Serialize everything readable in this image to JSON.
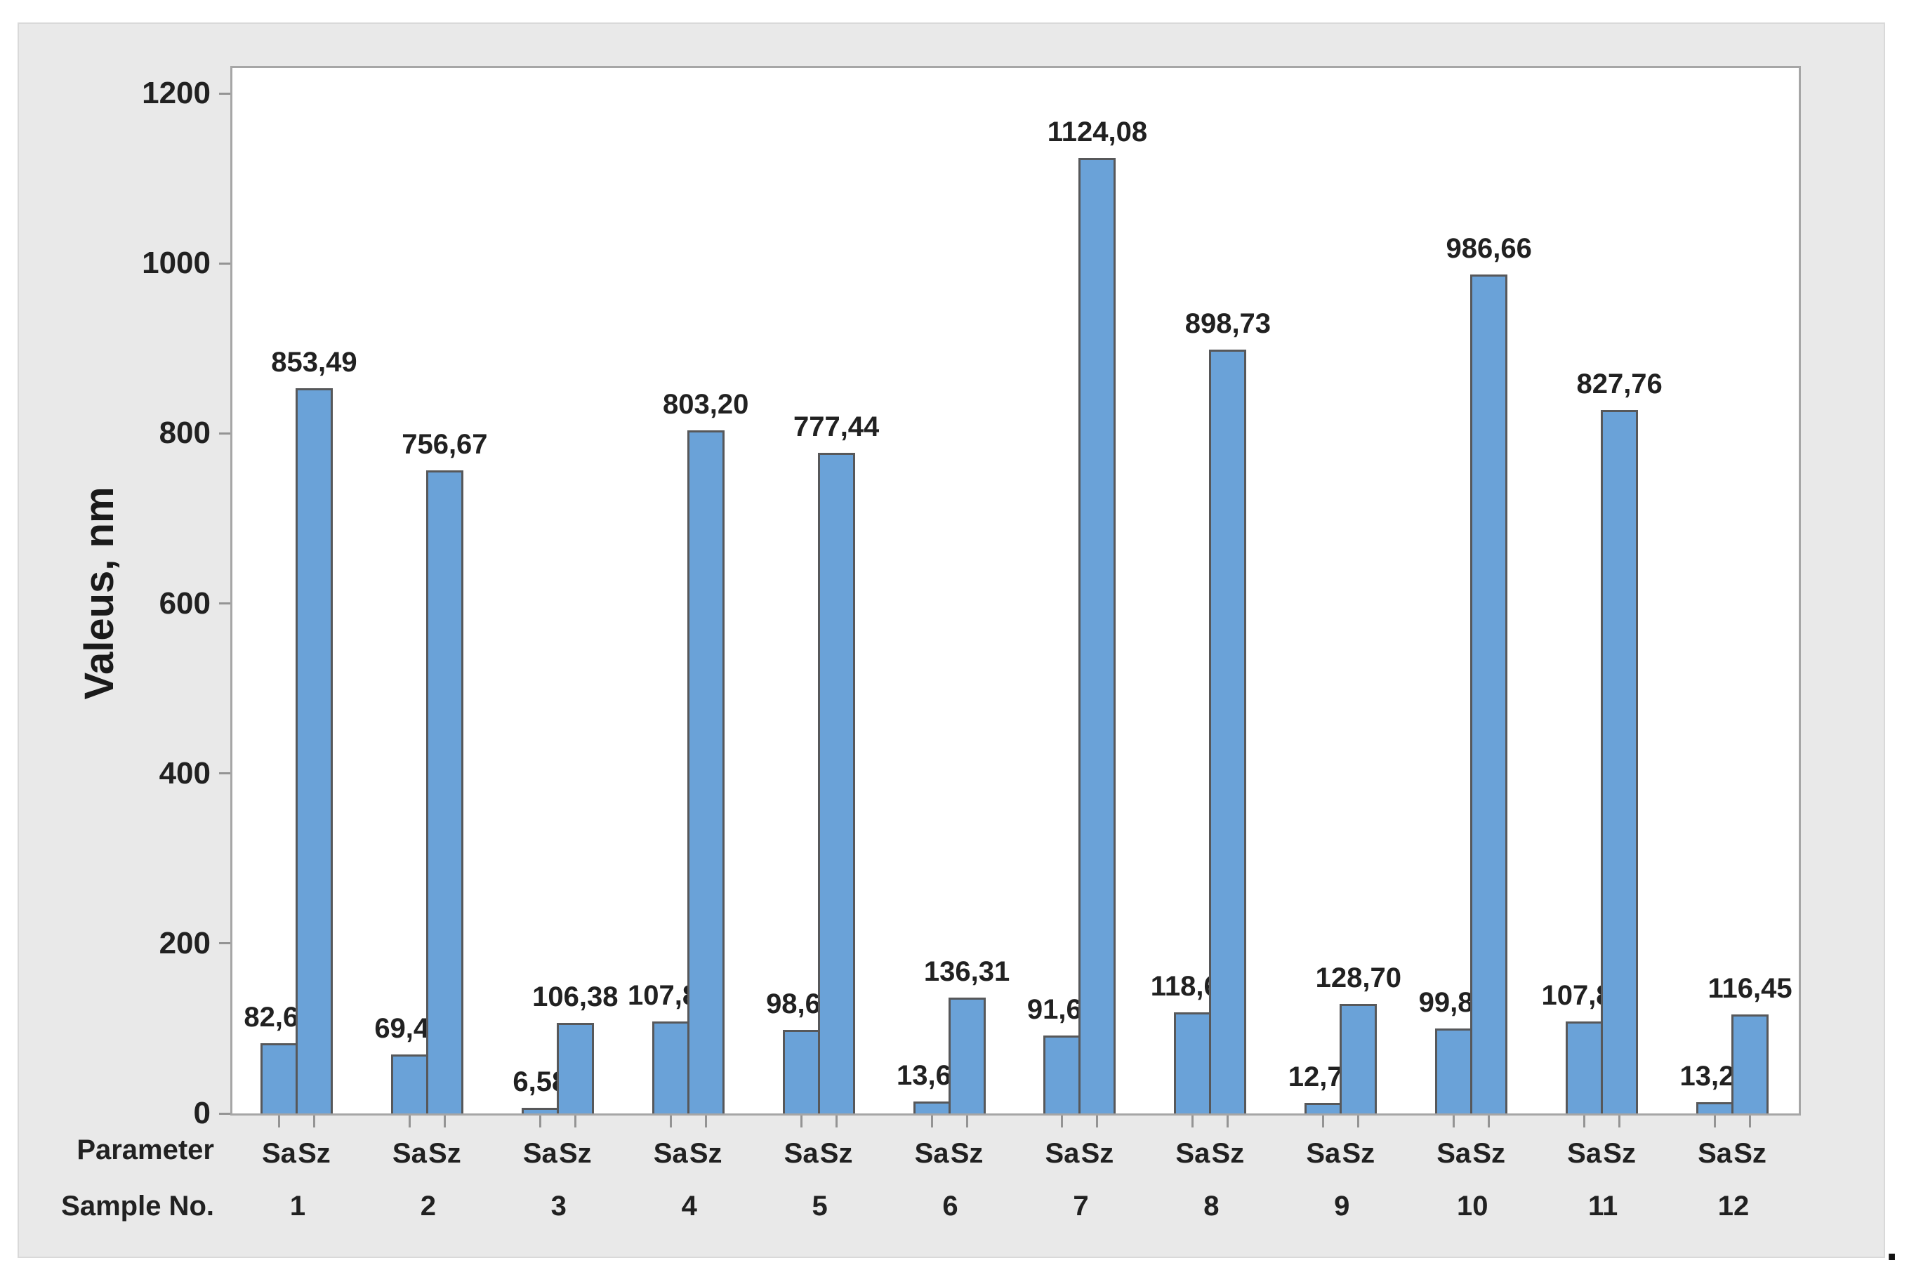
{
  "page": {
    "background": "#ffffff",
    "trailing_period": "."
  },
  "colors": {
    "panel_bg": "#e9e9e9",
    "panel_border": "#d9d9d9",
    "plot_border": "#a6a6a6",
    "bar_fill": "#6aa2d8",
    "bar_border": "#57585a",
    "tick": "#949494",
    "text": "#212121"
  },
  "chart_data": {
    "type": "bar",
    "title": "",
    "ylabel": "Valeus, nm",
    "xlabel": "",
    "ylim": [
      0,
      1200
    ],
    "yticks": [
      0,
      200,
      400,
      600,
      800,
      1000,
      1200
    ],
    "grid": false,
    "legend_position": "none",
    "x_row_headers": [
      "Parameter",
      "Sample No."
    ],
    "categories": [
      "1",
      "2",
      "3",
      "4",
      "5",
      "6",
      "7",
      "8",
      "9",
      "10",
      "11",
      "12"
    ],
    "bar_group_labels": [
      "Sa",
      "Sz"
    ],
    "series": [
      {
        "name": "Sa",
        "values": [
          82.67,
          69.41,
          6.58,
          107.83,
          98.65,
          13.65,
          91.69,
          118.63,
          12.77,
          99.87,
          107.88,
          13.27
        ],
        "labels": [
          "82,67",
          "69,41",
          "6,58",
          "107,83",
          "98,65",
          "13,65",
          "91,69",
          "118,63",
          "12,77",
          "99,87",
          "107,88",
          "13,27"
        ]
      },
      {
        "name": "Sz",
        "values": [
          853.49,
          756.67,
          106.38,
          803.2,
          777.44,
          136.31,
          1124.08,
          898.73,
          128.7,
          986.66,
          827.76,
          116.45
        ],
        "labels": [
          "853,49",
          "756,67",
          "106,38",
          "803,20",
          "777,44",
          "136,31",
          "1124,08",
          "898,73",
          "128,70",
          "986,66",
          "827,76",
          "116,45"
        ]
      }
    ]
  }
}
